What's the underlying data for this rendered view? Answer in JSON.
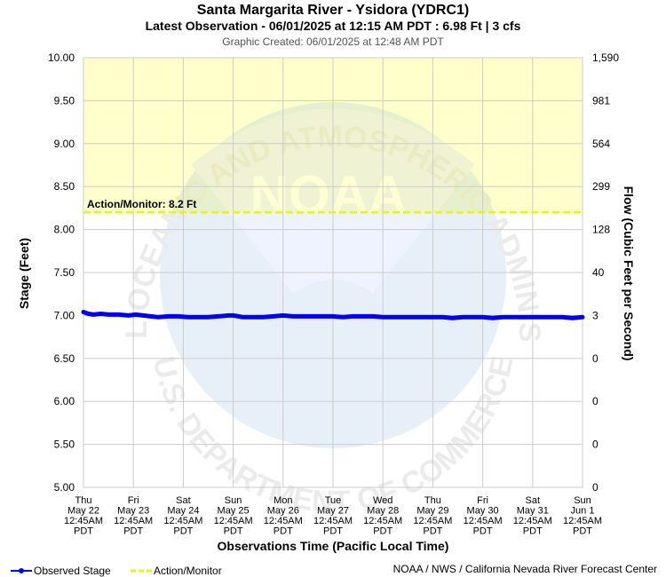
{
  "chart_data": {
    "type": "line",
    "title": "Santa Margarita River - Ysidora (YDRC1)",
    "subtitle": "Latest Observation - 06/01/2025 at 12:15 AM PDT : 6.98 Ft | 3 cfs",
    "created": "Graphic Created: 06/01/2025 at 12:48 AM PDT",
    "ylabel": "Stage (Feet)",
    "y2label": "Flow (Cubic Feet per Second)",
    "xlabel": "Observations Time (Pacific Local Time)",
    "ylim": [
      5.0,
      10.0
    ],
    "y_ticks": [
      "10.00",
      "9.50",
      "9.00",
      "8.50",
      "8.00",
      "7.50",
      "7.00",
      "6.50",
      "6.00",
      "5.50",
      "5.00"
    ],
    "y2_ticks": [
      "1,590",
      "981",
      "564",
      "299",
      "128",
      "40",
      "3",
      "0",
      "0",
      "0",
      "0"
    ],
    "x_ticks": [
      [
        "Thu",
        "May 22",
        "12:45AM",
        "PDT"
      ],
      [
        "Fri",
        "May 23",
        "12:45AM",
        "PDT"
      ],
      [
        "Sat",
        "May 24",
        "12:45AM",
        "PDT"
      ],
      [
        "Sun",
        "May 25",
        "12:45AM",
        "PDT"
      ],
      [
        "Mon",
        "May 26",
        "12:45AM",
        "PDT"
      ],
      [
        "Tue",
        "May 27",
        "12:45AM",
        "PDT"
      ],
      [
        "Wed",
        "May 28",
        "12:45AM",
        "PDT"
      ],
      [
        "Thu",
        "May 29",
        "12:45AM",
        "PDT"
      ],
      [
        "Fri",
        "May 30",
        "12:45AM",
        "PDT"
      ],
      [
        "Sat",
        "May 31",
        "12:45AM",
        "PDT"
      ],
      [
        "Sun",
        "Jun 1",
        "12:45AM",
        "PDT"
      ]
    ],
    "action_stage": 8.2,
    "action_label": "Action/Monitor: 8.2 Ft",
    "series": [
      {
        "name": "Observed Stage",
        "color": "#0000ee",
        "x_days": [
          0,
          0.1,
          0.2,
          0.35,
          0.5,
          0.7,
          0.9,
          1.05,
          1.2,
          1.35,
          1.5,
          1.7,
          1.9,
          2.1,
          2.3,
          2.5,
          2.7,
          2.9,
          3.0,
          3.2,
          3.4,
          3.6,
          3.8,
          4.0,
          4.2,
          4.4,
          4.6,
          4.8,
          5.0,
          5.2,
          5.4,
          5.6,
          5.8,
          6.0,
          6.2,
          6.4,
          6.6,
          6.8,
          7.0,
          7.2,
          7.4,
          7.6,
          7.8,
          8.0,
          8.2,
          8.4,
          8.6,
          8.8,
          9.0,
          9.2,
          9.4,
          9.6,
          9.8,
          10.0
        ],
        "values": [
          7.04,
          7.02,
          7.01,
          7.02,
          7.01,
          7.01,
          7.0,
          7.01,
          7.0,
          6.99,
          6.98,
          6.99,
          6.99,
          6.98,
          6.98,
          6.98,
          6.99,
          7.0,
          7.0,
          6.98,
          6.98,
          6.98,
          6.99,
          7.0,
          6.99,
          6.99,
          6.99,
          6.99,
          6.99,
          6.98,
          6.99,
          6.99,
          6.99,
          6.98,
          6.98,
          6.98,
          6.98,
          6.98,
          6.98,
          6.98,
          6.97,
          6.98,
          6.98,
          6.98,
          6.97,
          6.98,
          6.98,
          6.98,
          6.98,
          6.98,
          6.98,
          6.98,
          6.97,
          6.98
        ]
      },
      {
        "name": "Action/Monitor",
        "color": "#eeee22"
      }
    ],
    "credit": "NOAA / NWS / California Nevada River Forecast Center",
    "watermark": {
      "arc_top": "NATIONAL OCEANIC AND ATMOSPHERIC ADMINISTRATION",
      "arc_bottom": "U.S. DEPARTMENT OF COMMERCE",
      "logo_text": "NOAA"
    }
  },
  "colors": {
    "action_zone": "#ffffcc",
    "grid": "#cccccc",
    "stage_line": "#0000ee",
    "action_line": "#eeee22"
  }
}
